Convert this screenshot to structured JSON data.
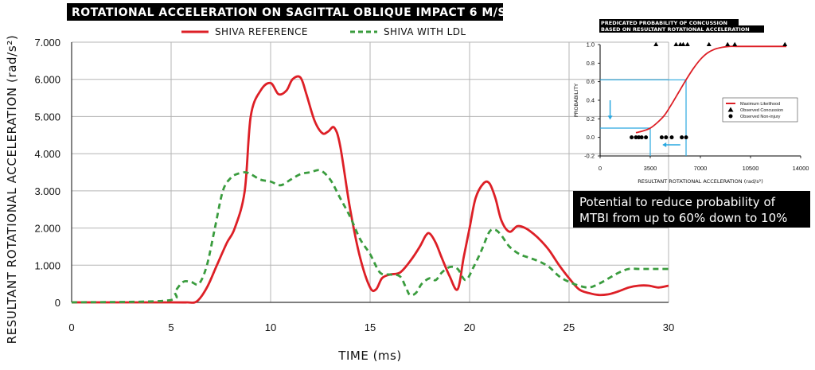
{
  "chart_data": [
    {
      "type": "line",
      "title": "ROTATIONAL ACCELERATION ON SAGITTAL OBLIQUE IMPACT 6 M/S",
      "xlabel": "TIME (ms)",
      "ylabel": "RESULTANT ROTATIONAL ACCELERATION (rad/s²)",
      "xlim": [
        0,
        30
      ],
      "ylim": [
        0,
        7000
      ],
      "xticks": [
        "0",
        "5",
        "10",
        "15",
        "20",
        "25",
        "30"
      ],
      "yticks": [
        "0",
        "1.000",
        "2.000",
        "3.000",
        "4.000",
        "5.000",
        "6.000",
        "7.000"
      ],
      "grid": true,
      "legend_position": "top",
      "series": [
        {
          "name": "SHIVA REFERENCE",
          "color": "#dd1f26",
          "style": "solid",
          "x": [
            0,
            5,
            5.8,
            6.3,
            6.8,
            7.3,
            7.8,
            8.2,
            8.7,
            9.0,
            9.5,
            10.0,
            10.4,
            10.8,
            11.1,
            11.5,
            11.8,
            12.2,
            12.6,
            12.9,
            13.2,
            13.5,
            14.0,
            14.5,
            15.0,
            15.3,
            15.6,
            16.0,
            16.5,
            17.0,
            17.5,
            17.8,
            18.0,
            18.3,
            18.6,
            19.0,
            19.4,
            19.7,
            20.0,
            20.3,
            20.7,
            21.0,
            21.3,
            21.6,
            22.0,
            22.4,
            22.8,
            23.2,
            23.6,
            24.0,
            24.5,
            25.0,
            25.5,
            26.0,
            26.5,
            27.0,
            27.5,
            28.0,
            28.5,
            29.0,
            29.5,
            30.0
          ],
          "values": [
            0,
            0,
            0,
            30,
            400,
            1000,
            1600,
            2000,
            3000,
            5000,
            5700,
            5900,
            5600,
            5700,
            6000,
            6050,
            5600,
            4900,
            4550,
            4600,
            4700,
            4200,
            2500,
            1200,
            400,
            350,
            650,
            750,
            800,
            1100,
            1500,
            1800,
            1850,
            1600,
            1200,
            700,
            350,
            1200,
            2000,
            2800,
            3200,
            3200,
            2800,
            2200,
            1900,
            2050,
            2000,
            1850,
            1650,
            1400,
            1000,
            650,
            350,
            250,
            200,
            220,
            300,
            400,
            450,
            450,
            400,
            450
          ]
        },
        {
          "name": "SHIVA WITH LDL",
          "color": "#3a9c3e",
          "style": "dashed",
          "x": [
            0,
            4.8,
            5.2,
            5.6,
            6.0,
            6.4,
            6.8,
            7.2,
            7.6,
            8.0,
            8.3,
            8.7,
            9.0,
            9.5,
            10.0,
            10.5,
            11.0,
            11.5,
            12.0,
            12.5,
            13.0,
            13.5,
            14.0,
            14.5,
            15.0,
            15.5,
            16.0,
            16.5,
            16.8,
            17.0,
            17.3,
            17.6,
            18.0,
            18.3,
            18.6,
            19.0,
            19.4,
            19.8,
            20.2,
            20.6,
            21.0,
            21.3,
            21.6,
            22.0,
            22.5,
            23.0,
            23.5,
            24.0,
            24.5,
            25.0,
            25.5,
            26.0,
            26.5,
            27.0,
            27.5,
            28.0,
            28.5,
            29.0,
            29.5,
            30.0
          ],
          "values": [
            0,
            50,
            300,
            550,
            550,
            500,
            1000,
            2000,
            3000,
            3350,
            3450,
            3500,
            3450,
            3300,
            3250,
            3150,
            3300,
            3450,
            3500,
            3550,
            3300,
            2800,
            2300,
            1700,
            1300,
            800,
            750,
            700,
            400,
            200,
            250,
            500,
            650,
            600,
            800,
            950,
            900,
            600,
            950,
            1400,
            1900,
            1950,
            1800,
            1500,
            1300,
            1200,
            1100,
            950,
            700,
            550,
            450,
            400,
            500,
            650,
            800,
            900,
            900,
            900,
            900,
            900
          ]
        }
      ]
    },
    {
      "type": "line",
      "title": "PREDICATED PROBABILITY OF CONCUSSION BASED ON RESULTANT ROTATIONAL ACCELERATION",
      "title_lines": [
        "PREDICATED PROBABILITY OF CONCUSSION",
        "BASED ON RESULTANT ROTATIONAL ACCELERATION"
      ],
      "xlabel": "RESULTANT ROTATIONAL ACCELERATION (rad/s²)",
      "ylabel": "PROBABILITY",
      "xlim": [
        0,
        14000
      ],
      "ylim": [
        -0.2,
        1.0
      ],
      "xticks": [
        "0",
        "3500",
        "7000",
        "10500",
        "14000"
      ],
      "yticks": [
        "-0.2",
        "0.0",
        "0.2",
        "0.4",
        "0.6",
        "0.8",
        "1.0"
      ],
      "grid": false,
      "legend_position": "right",
      "series": [
        {
          "name": "Maximum Likelihood",
          "color": "#dd1f26",
          "style": "solid",
          "x": [
            2500,
            3000,
            3500,
            4000,
            4500,
            5000,
            5500,
            6000,
            6500,
            7000,
            7500,
            8000,
            8500,
            9000,
            9500,
            10000,
            10500,
            11000,
            12000,
            13000
          ],
          "values": [
            0.05,
            0.07,
            0.1,
            0.16,
            0.24,
            0.36,
            0.49,
            0.62,
            0.74,
            0.84,
            0.91,
            0.95,
            0.97,
            0.98,
            0.98,
            0.98,
            0.98,
            0.98,
            0.98,
            0.98
          ]
        },
        {
          "name": "Observed Concussion",
          "color": "#000000",
          "style": "marker-triangle",
          "x": [
            3900,
            5300,
            5600,
            5800,
            6100,
            7600,
            8900,
            9400,
            12900
          ],
          "values": [
            1,
            1,
            1,
            1,
            1,
            1,
            1,
            1,
            1
          ]
        },
        {
          "name": "Observed Non-injury",
          "color": "#000000",
          "style": "marker-circle",
          "x": [
            2200,
            2500,
            2700,
            2900,
            3200,
            4300,
            4600,
            5000,
            5700,
            6000
          ],
          "values": [
            0,
            0,
            0,
            0,
            0,
            0,
            0,
            0,
            0,
            0
          ]
        }
      ],
      "annotations": [
        {
          "kind": "guide-line",
          "color": "#29a8e0",
          "from_x": 6000,
          "probability": 0.62
        },
        {
          "kind": "guide-line",
          "color": "#29a8e0",
          "from_x": 3500,
          "probability": 0.1
        }
      ]
    }
  ],
  "callout": {
    "lines": [
      "Potential to reduce probability of",
      "MTBI from up to 60% down to 10%"
    ]
  }
}
